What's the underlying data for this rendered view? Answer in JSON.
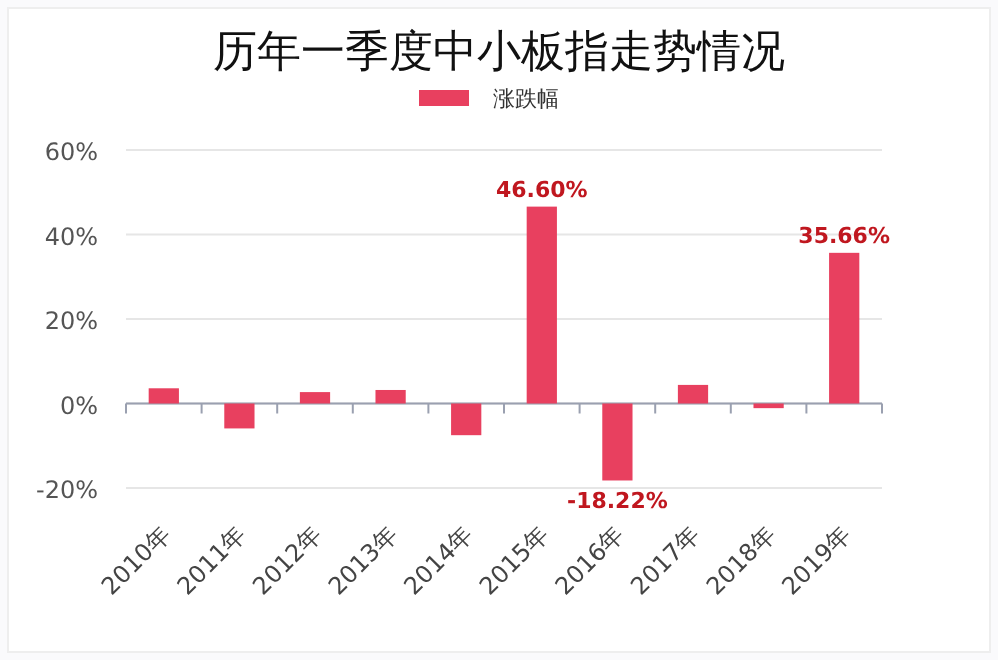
{
  "chart_data": {
    "type": "bar",
    "title": "历年一季度中小板指走势情况",
    "categories": [
      "2010年",
      "2011年",
      "2012年",
      "2013年",
      "2014年",
      "2015年",
      "2016年",
      "2017年",
      "2018年",
      "2019年"
    ],
    "series": [
      {
        "name": "涨跌幅",
        "color": "#e8405f",
        "values": [
          3.6,
          -5.9,
          2.7,
          3.2,
          -7.5,
          46.6,
          -18.22,
          4.4,
          -1.1,
          35.66
        ],
        "value_labels": [
          null,
          null,
          null,
          null,
          null,
          "46.60%",
          "-18.22%",
          null,
          null,
          "35.66%"
        ]
      }
    ],
    "ylim": [
      -20,
      60
    ],
    "yticks": [
      {
        "value": -20,
        "label": "-20%"
      },
      {
        "value": 0,
        "label": "0%"
      },
      {
        "value": 20,
        "label": "20%"
      },
      {
        "value": 40,
        "label": "40%"
      },
      {
        "value": 60,
        "label": "60%"
      }
    ],
    "grid": "y",
    "legend": "top"
  }
}
